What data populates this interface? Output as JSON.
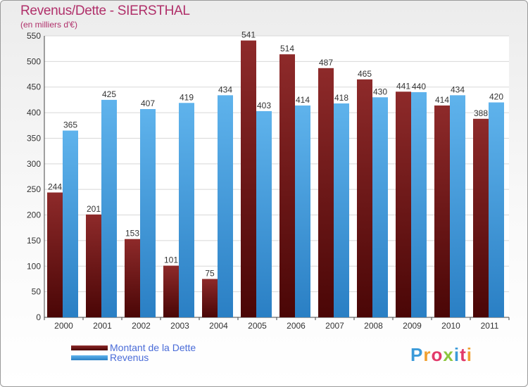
{
  "header": {
    "title": "Revenus/Dette - SIERSTHAL",
    "subtitle": "(en milliers d'€)"
  },
  "legend": {
    "debt_label": "Montant de la Dette",
    "revenue_label": "Revenus"
  },
  "logo": {
    "text": "Proxiti"
  },
  "colors": {
    "debt": "#7a1c1c",
    "revenue": "#4aa3e0",
    "title": "#b0306a",
    "legend_text": "#4a6cd8"
  },
  "chart_data": {
    "type": "bar",
    "title": "Revenus/Dette - SIERSTHAL",
    "subtitle": "(en milliers d'€)",
    "xlabel": "",
    "ylabel": "",
    "ylim": [
      0,
      550
    ],
    "yticks": [
      0,
      50,
      100,
      150,
      200,
      250,
      300,
      350,
      400,
      450,
      500,
      550
    ],
    "grid": true,
    "legend_position": "bottom-left",
    "categories": [
      "2000",
      "2001",
      "2002",
      "2003",
      "2004",
      "2005",
      "2006",
      "2007",
      "2008",
      "2009",
      "2010",
      "2011"
    ],
    "series": [
      {
        "name": "Montant de la Dette",
        "values": [
          244,
          201,
          153,
          101,
          75,
          541,
          514,
          487,
          465,
          441,
          414,
          388
        ]
      },
      {
        "name": "Revenus",
        "values": [
          365,
          425,
          407,
          419,
          434,
          403,
          414,
          418,
          430,
          440,
          434,
          420
        ]
      }
    ]
  }
}
